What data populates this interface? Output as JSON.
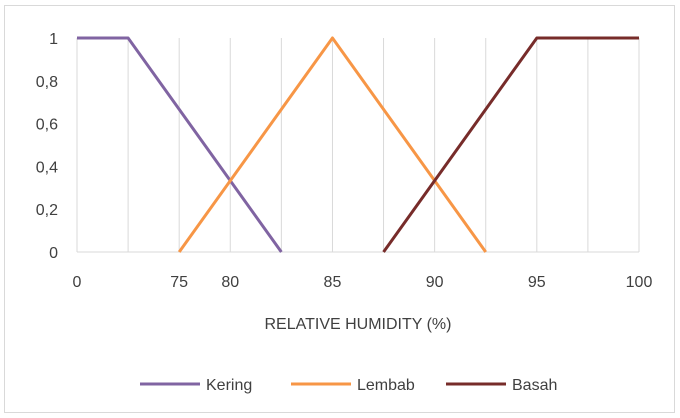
{
  "chart_data": {
    "type": "line",
    "title": "",
    "xlabel": "RELATIVE HUMIDITY (%)",
    "ylabel": "",
    "x_categories": [
      "0",
      "",
      "75",
      "80",
      "",
      "85",
      "",
      "90",
      "",
      "95",
      "",
      "100"
    ],
    "y_ticks": [
      "0",
      "0,2",
      "0,4",
      "0,6",
      "0,8",
      "1"
    ],
    "ylim": [
      0,
      1
    ],
    "grid": "vertical",
    "legend_position": "bottom",
    "series": [
      {
        "name": "Kering",
        "color": "#8064a2",
        "points": [
          [
            0,
            1
          ],
          [
            1,
            1
          ],
          [
            4,
            0
          ]
        ]
      },
      {
        "name": "Lembab",
        "color": "#f79646",
        "points": [
          [
            2,
            0
          ],
          [
            5,
            1
          ],
          [
            8,
            0
          ]
        ]
      },
      {
        "name": "Basah",
        "color": "#772c2a",
        "points": [
          [
            6,
            0
          ],
          [
            9,
            1
          ],
          [
            11,
            1
          ]
        ]
      }
    ]
  }
}
